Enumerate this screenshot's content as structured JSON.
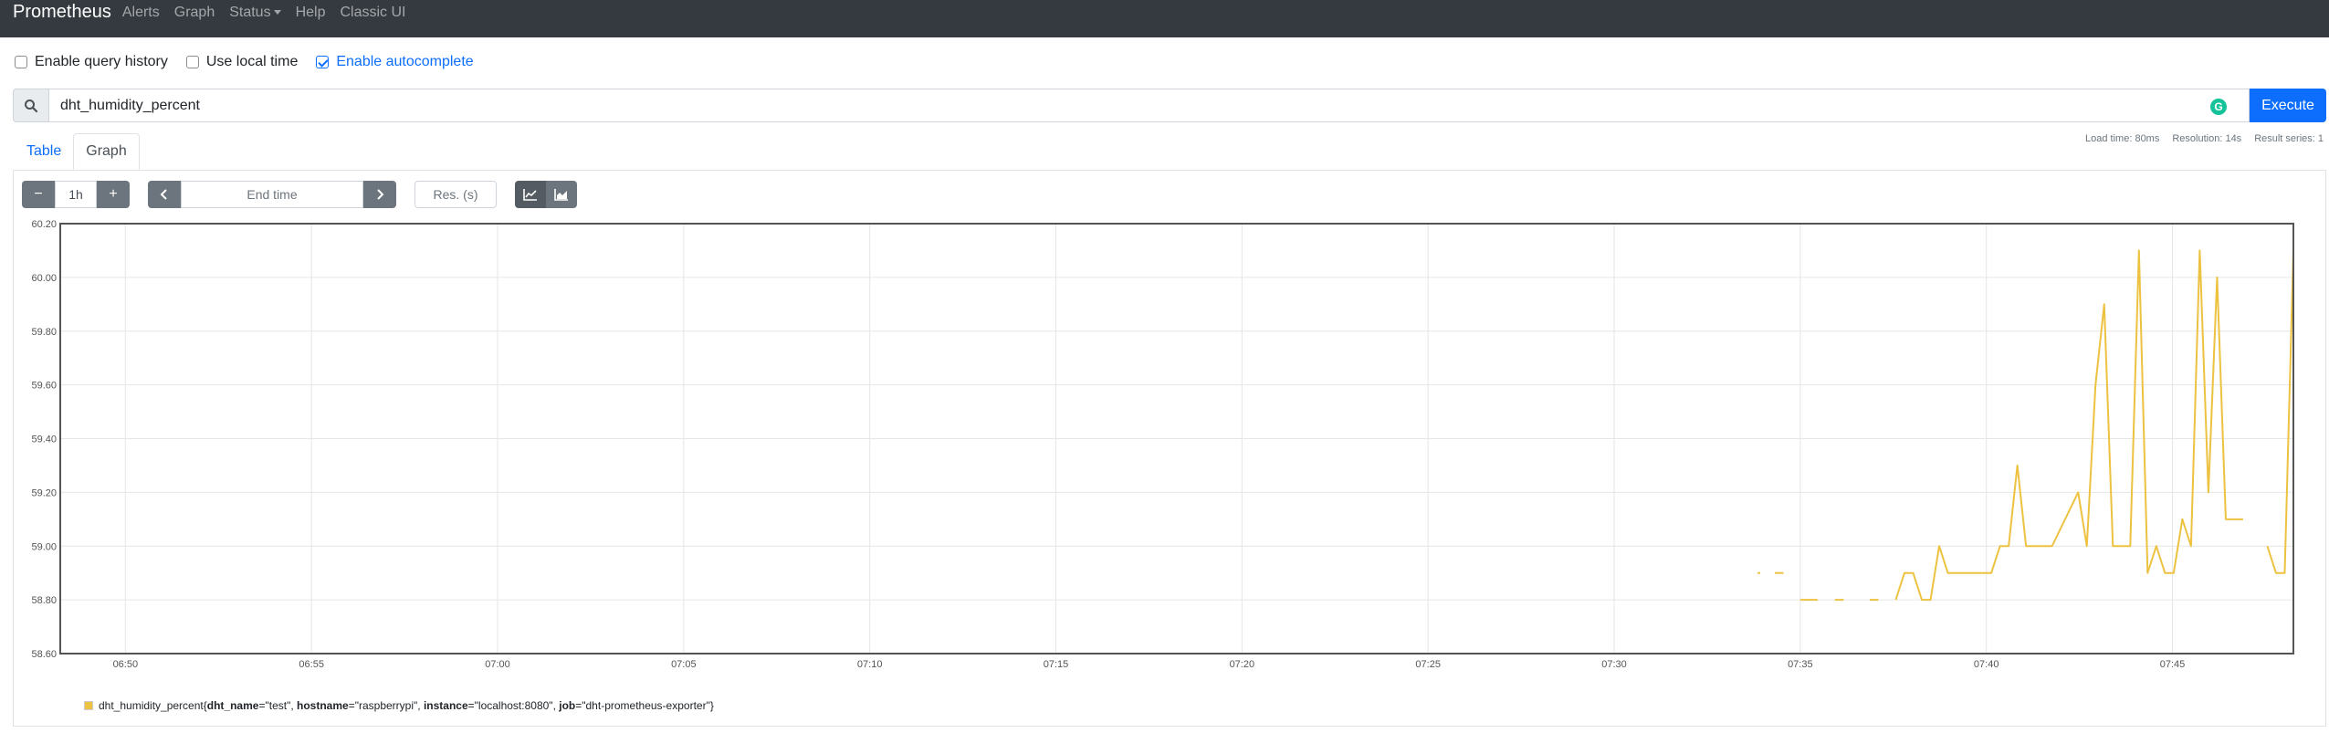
{
  "navbar": {
    "brand": "Prometheus",
    "items": [
      {
        "label": "Alerts"
      },
      {
        "label": "Graph"
      },
      {
        "label": "Status"
      },
      {
        "label": "Help"
      },
      {
        "label": "Classic UI"
      }
    ]
  },
  "options": {
    "query_history": {
      "label": "Enable query history",
      "checked": false
    },
    "local_time": {
      "label": "Use local time",
      "checked": false
    },
    "autocomplete": {
      "label": "Enable autocomplete",
      "checked": true
    }
  },
  "query": {
    "value": "dht_humidity_percent",
    "execute_label": "Execute",
    "badge": "G"
  },
  "stats": {
    "load_time": "Load time: 80ms",
    "resolution": "Resolution: 14s",
    "result_series": "Result series: 1"
  },
  "tabs": [
    {
      "label": "Table",
      "active": false
    },
    {
      "label": "Graph",
      "active": true
    }
  ],
  "controls": {
    "minus": "−",
    "range": "1h",
    "plus": "+",
    "end_time_placeholder": "End time",
    "res_placeholder": "Res. (s)"
  },
  "legend": {
    "metric": "dht_humidity_percent",
    "open": "{",
    "labels": [
      {
        "key": "dht_name",
        "value": "\"test\""
      },
      {
        "key": "hostname",
        "value": "\"raspberrypi\""
      },
      {
        "key": "instance",
        "value": "\"localhost:8080\""
      },
      {
        "key": "job",
        "value": "\"dht-prometheus-exporter\""
      }
    ],
    "close": "}"
  },
  "colors": {
    "series": "#edc240",
    "navbar": "#343a40",
    "accent": "#0d6efd"
  },
  "chart_data": {
    "type": "line",
    "title": "",
    "xlabel": "",
    "ylabel": "",
    "x_ticks": [
      "06:50",
      "06:55",
      "07:00",
      "07:05",
      "07:10",
      "07:15",
      "07:20",
      "07:25",
      "07:30",
      "07:35",
      "07:40",
      "07:45"
    ],
    "y_ticks": [
      "58.60",
      "58.80",
      "59.00",
      "59.20",
      "59.40",
      "59.60",
      "59.80",
      "60.00",
      "60.20"
    ],
    "ylim": [
      58.6,
      60.2
    ],
    "xlim": [
      "06:48:15",
      "07:48:15"
    ],
    "grid": true,
    "series": [
      {
        "name": "dht_humidity_percent{dht_name=\"test\", hostname=\"raspberrypi\", instance=\"localhost:8080\", job=\"dht-prometheus-exporter\"}",
        "segments": [
          [
            [
              "07:33:51",
              58.9
            ],
            [
              "07:33:51",
              58.9
            ]
          ],
          [
            [
              "07:34:19",
              58.9
            ],
            [
              "07:34:33",
              58.9
            ]
          ],
          [
            [
              "07:35:00",
              58.8
            ],
            [
              "07:35:28",
              58.8
            ]
          ],
          [
            [
              "07:35:56",
              58.8
            ],
            [
              "07:36:10",
              58.8
            ]
          ],
          [
            [
              "07:36:52",
              58.8
            ],
            [
              "07:37:06",
              58.8
            ]
          ],
          [
            [
              "07:37:34",
              58.8
            ],
            [
              "07:37:48",
              58.9
            ],
            [
              "07:38:02",
              58.9
            ],
            [
              "07:38:16",
              58.8
            ],
            [
              "07:38:30",
              58.8
            ],
            [
              "07:38:44",
              59.0
            ],
            [
              "07:38:58",
              58.9
            ],
            [
              "07:39:40",
              58.9
            ],
            [
              "07:40:08",
              58.9
            ],
            [
              "07:40:22",
              59.0
            ],
            [
              "07:40:36",
              59.0
            ],
            [
              "07:40:50",
              59.3
            ],
            [
              "07:41:04",
              59.0
            ],
            [
              "07:41:18",
              59.0
            ],
            [
              "07:41:46",
              59.0
            ],
            [
              "07:42:28",
              59.2
            ],
            [
              "07:42:42",
              59.0
            ],
            [
              "07:42:56",
              59.6
            ],
            [
              "07:43:10",
              59.9
            ],
            [
              "07:43:24",
              59.0
            ],
            [
              "07:43:52",
              59.0
            ],
            [
              "07:44:06",
              60.1
            ],
            [
              "07:44:20",
              58.9
            ],
            [
              "07:44:34",
              59.0
            ],
            [
              "07:44:48",
              58.9
            ],
            [
              "07:45:02",
              58.9
            ],
            [
              "07:45:16",
              59.1
            ],
            [
              "07:45:30",
              59.0
            ],
            [
              "07:45:44",
              60.1
            ],
            [
              "07:45:58",
              59.2
            ],
            [
              "07:46:12",
              60.0
            ],
            [
              "07:46:26",
              59.1
            ],
            [
              "07:46:54",
              59.1
            ]
          ],
          [
            [
              "07:47:33",
              59.0
            ],
            [
              "07:47:47",
              58.9
            ],
            [
              "07:48:01",
              58.9
            ],
            [
              "07:48:15",
              60.1
            ]
          ]
        ]
      }
    ]
  }
}
